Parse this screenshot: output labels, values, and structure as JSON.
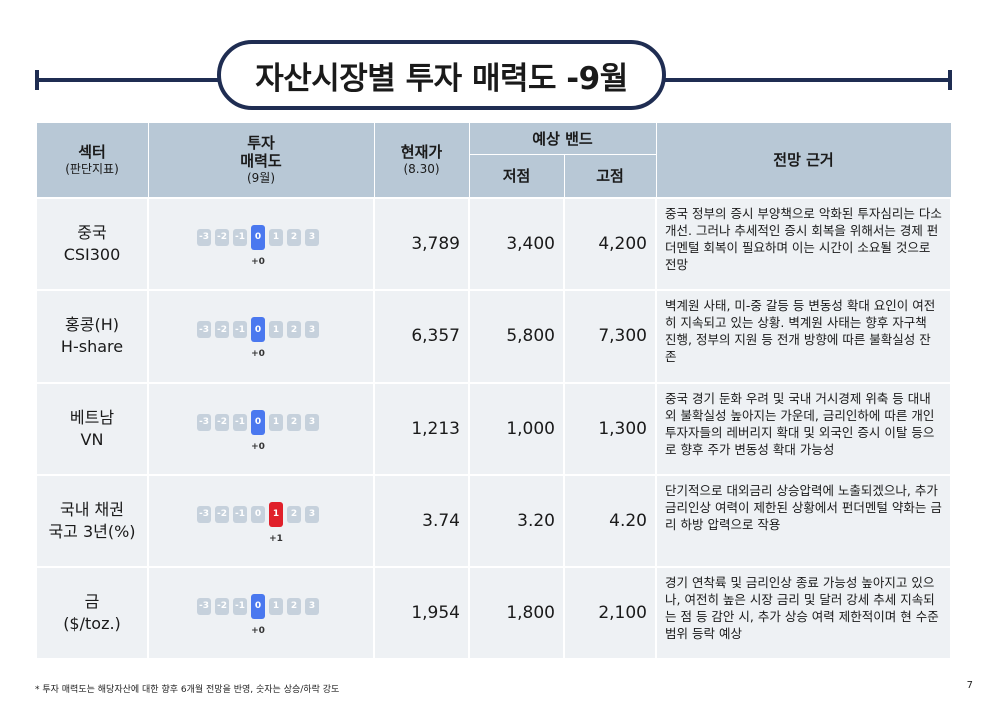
{
  "title": "자산시장별 투자 매력도 -9월",
  "header": {
    "sector_main": "섹터",
    "sector_sub": "(판단지표)",
    "attract_l1": "투자",
    "attract_l2": "매력도",
    "attract_sub": "(9월)",
    "price_main": "현재가",
    "price_sub": "(8.30)",
    "band": "예상 밴드",
    "low": "저점",
    "high": "고점",
    "basis": "전망 근거"
  },
  "scale_labels": [
    "-3",
    "-2",
    "-1",
    "0",
    "1",
    "2",
    "3"
  ],
  "rows": [
    {
      "sector_l1": "중국",
      "sector_l2": "CSI300",
      "score": 0,
      "score_label": "+0",
      "price": "3,789",
      "low": "3,400",
      "high": "4,200",
      "basis": "중국 정부의 증시 부양책으로 악화된 투자심리는 다소 개선. 그러나 추세적인 증시 회복을 위해서는 경제 펀더멘털 회복이 필요하며 이는 시간이 소요될 것으로 전망"
    },
    {
      "sector_l1": "홍콩(H)",
      "sector_l2": "H-share",
      "score": 0,
      "score_label": "+0",
      "price": "6,357",
      "low": "5,800",
      "high": "7,300",
      "basis": "벽계원 사태, 미-중 갈등 등 변동성 확대 요인이 여전히 지속되고 있는 상황. 벽계원 사태는 향후 자구책 진행, 정부의 지원 등 전개 방향에 따른 불확실성 잔존"
    },
    {
      "sector_l1": "베트남",
      "sector_l2": "VN",
      "score": 0,
      "score_label": "+0",
      "price": "1,213",
      "low": "1,000",
      "high": "1,300",
      "basis": "중국 경기 둔화 우려 및 국내 거시경제 위축 등 대내외 불확실성 높아지는 가운데, 금리인하에 따른 개인투자자들의 레버리지 확대 및 외국인 증시 이탈 등으로 향후 주가 변동성 확대 가능성"
    },
    {
      "sector_l1": "국내 채권",
      "sector_l2": "국고 3년(%)",
      "score": 1,
      "score_label": "+1",
      "price": "3.74",
      "low": "3.20",
      "high": "4.20",
      "basis": "단기적으로 대외금리 상승압력에 노출되겠으나, 추가금리인상 여력이 제한된 상황에서 펀더멘털 약화는 금리 하방 압력으로 작용"
    },
    {
      "sector_l1": "금",
      "sector_l2": "($/toz.)",
      "score": 0,
      "score_label": "+0",
      "price": "1,954",
      "low": "1,800",
      "high": "2,100",
      "basis": "경기 연착륙 및 금리인상 종료 가능성 높아지고 있으나, 여전히 높은 시장 금리 및 달러 강세 추세 지속되는 점 등 감안 시, 추가 상승 여력 제한적이며 현 수준 범위 등락 예상"
    }
  ],
  "footnote": "* 투자 매력도는 해당자산에 대한 향후 6개월 전망을 반영, 숫자는 상승/하락 강도",
  "page_number": "7",
  "colors": {
    "positive": "#e0202a",
    "neutral": "#4a78ef",
    "inactive": "#c6d1dc",
    "header_bg": "#b8c8d6",
    "row_bg": "#eef1f4",
    "title_border": "#1f2d52"
  }
}
